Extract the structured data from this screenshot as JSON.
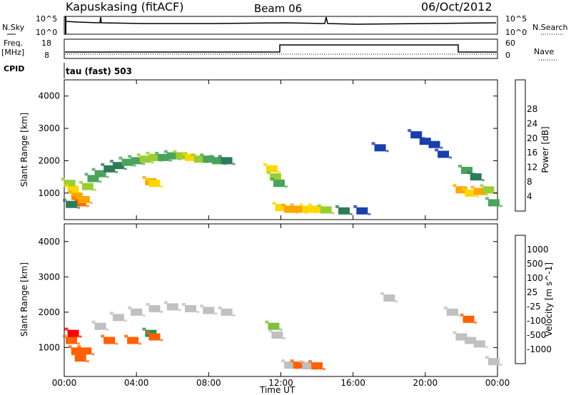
{
  "header": {
    "station": "Kapuskasing (fitACF)",
    "beam": "Beam 06",
    "date": "06/Oct/2012"
  },
  "status": {
    "nsky_label": "N.Sky",
    "nsky_ticks": [
      "10^5",
      "10^0"
    ],
    "nsearch_label": "N.Search",
    "nsearch_ticks": [
      "10^5",
      "10^0"
    ],
    "freq_label_line1": "Freq.",
    "freq_label_line2": "[MHz]",
    "freq_ticks": [
      "18",
      "8"
    ],
    "nave_label": "Nave",
    "nave_ticks": [
      "60",
      "0"
    ],
    "cpid_label": "CPID",
    "cpid_text": "tau (fast) 503"
  },
  "colors": {
    "power_scale": [
      "#0000ff",
      "#1a3fa8",
      "#2f7a5a",
      "#4aa35c",
      "#9acd32",
      "#ffd700",
      "#ffa500",
      "#ff6a00",
      "#ff2000"
    ],
    "velocity_scale": [
      "#ff0000",
      "#ff6000",
      "#ffa000",
      "#c0c0c0",
      "#c8c8c8",
      "#80c040",
      "#2e8b57",
      "#1a6aa8",
      "#1010d0"
    ],
    "ground_scatter": "#c0c0c0"
  },
  "chart_data": [
    {
      "type": "heatmap",
      "panel": "power",
      "ylabel": "Slant Range [km]",
      "y_ticks": [
        "1000",
        "2000",
        "3000",
        "4000"
      ],
      "ylim": [
        180,
        4500
      ],
      "xlim": [
        0,
        24
      ],
      "colorbar_label": "Power [dB]",
      "colorbar_ticks": [
        "4",
        "8",
        "12",
        "16",
        "20",
        "24",
        "28"
      ],
      "cells": [
        [
          0.3,
          1300,
          16
        ],
        [
          0.5,
          1100,
          20
        ],
        [
          0.7,
          900,
          24
        ],
        [
          0.9,
          700,
          28
        ],
        [
          1.1,
          800,
          24
        ],
        [
          1.3,
          1200,
          16
        ],
        [
          1.6,
          1450,
          12
        ],
        [
          2.0,
          1600,
          12
        ],
        [
          2.5,
          1750,
          8
        ],
        [
          3.0,
          1850,
          8
        ],
        [
          3.5,
          1950,
          12
        ],
        [
          4.0,
          2000,
          12
        ],
        [
          4.5,
          2050,
          16
        ],
        [
          5.0,
          2100,
          16
        ],
        [
          5.5,
          2100,
          12
        ],
        [
          6.0,
          2150,
          12
        ],
        [
          6.5,
          2150,
          16
        ],
        [
          7.0,
          2100,
          20
        ],
        [
          7.5,
          2050,
          16
        ],
        [
          8.0,
          2050,
          12
        ],
        [
          8.5,
          2000,
          12
        ],
        [
          9.0,
          2000,
          8
        ],
        [
          4.8,
          1350,
          24
        ],
        [
          5.0,
          1300,
          20
        ],
        [
          0.4,
          650,
          8
        ],
        [
          11.5,
          1750,
          20
        ],
        [
          11.7,
          1500,
          16
        ],
        [
          11.9,
          1300,
          12
        ],
        [
          12.0,
          550,
          20
        ],
        [
          12.5,
          500,
          24
        ],
        [
          13.0,
          500,
          24
        ],
        [
          13.5,
          500,
          20
        ],
        [
          14.0,
          500,
          20
        ],
        [
          14.5,
          480,
          16
        ],
        [
          15.5,
          450,
          8
        ],
        [
          16.5,
          450,
          4
        ],
        [
          22.0,
          1100,
          24
        ],
        [
          22.5,
          1000,
          20
        ],
        [
          23.0,
          1050,
          24
        ],
        [
          23.5,
          1100,
          16
        ],
        [
          22.3,
          1700,
          12
        ],
        [
          22.8,
          1500,
          8
        ],
        [
          21.0,
          2200,
          4
        ],
        [
          20.5,
          2500,
          4
        ],
        [
          19.5,
          2800,
          4
        ],
        [
          20.0,
          2600,
          4
        ],
        [
          23.8,
          700,
          12
        ],
        [
          17.5,
          2400,
          4
        ]
      ]
    },
    {
      "type": "heatmap",
      "panel": "velocity",
      "xlabel": "Time UT",
      "x_ticks": [
        "00:00",
        "04:00",
        "08:00",
        "12:00",
        "16:00",
        "20:00",
        "00:00"
      ],
      "ylabel": "Slant Range [km]",
      "y_ticks": [
        "1000",
        "2000",
        "3000",
        "4000"
      ],
      "ylim": [
        180,
        4500
      ],
      "xlim": [
        0,
        24
      ],
      "colorbar_label": "Velocity [m s^-1]",
      "colorbar_ticks": [
        "1000",
        "500",
        "100",
        "25",
        "-25",
        "-100",
        "-500",
        "-1000"
      ],
      "ground_scatter_color": "#c0c0c0",
      "cells": [
        [
          0.4,
          1200,
          -300
        ],
        [
          0.7,
          900,
          -200
        ],
        [
          0.9,
          700,
          -150
        ],
        [
          1.2,
          900,
          -400
        ],
        [
          0.5,
          1400,
          -500
        ],
        [
          2.0,
          1600,
          0
        ],
        [
          3.0,
          1850,
          0
        ],
        [
          4.0,
          2000,
          0
        ],
        [
          5.0,
          2100,
          0
        ],
        [
          6.0,
          2150,
          0
        ],
        [
          7.0,
          2100,
          0
        ],
        [
          8.0,
          2050,
          0
        ],
        [
          9.0,
          2000,
          0
        ],
        [
          4.8,
          1400,
          200
        ],
        [
          5.0,
          1300,
          -200
        ],
        [
          2.5,
          1200,
          -300
        ],
        [
          3.8,
          1200,
          -300
        ],
        [
          11.6,
          1600,
          50
        ],
        [
          11.8,
          1350,
          0
        ],
        [
          12.5,
          500,
          0
        ],
        [
          13.0,
          500,
          -100
        ],
        [
          13.5,
          480,
          0
        ],
        [
          14.0,
          480,
          -200
        ],
        [
          22.0,
          1300,
          0
        ],
        [
          22.5,
          1200,
          0
        ],
        [
          23.0,
          1100,
          0
        ],
        [
          22.4,
          1800,
          -300
        ],
        [
          21.5,
          2000,
          0
        ],
        [
          23.8,
          600,
          0
        ],
        [
          18.0,
          2400,
          0
        ]
      ]
    }
  ]
}
